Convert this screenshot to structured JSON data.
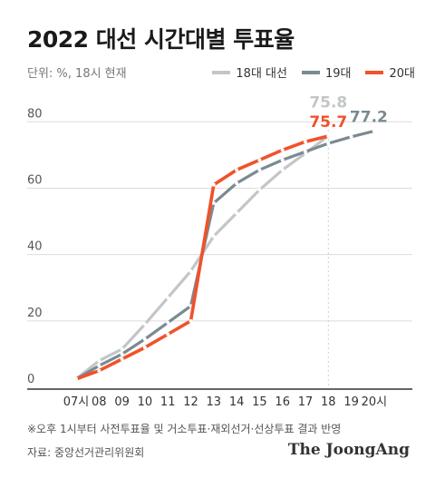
{
  "title": "2022 대선 시간대별 투표율",
  "unit_note": "단위: %, 18시 현재",
  "footnote": "※오후 1시부터 사전투표율 및 거소투표·재외선거·선상투표 결과 반영",
  "source": "자료: 중앙선거관리위원회",
  "brand": "The JoongAng",
  "colors": {
    "s18": "#c3c6c8",
    "s19": "#7a8a92",
    "s20": "#f0522a",
    "grid": "#dcdcdc",
    "axis": "#333333"
  },
  "chart_data": {
    "type": "line",
    "title": "2022 대선 시간대별 투표율",
    "xlabel": "",
    "ylabel": "",
    "ylim": [
      0,
      85
    ],
    "y_ticks": [
      0,
      20,
      40,
      60,
      80
    ],
    "x_ticks": [
      "07시",
      "08",
      "09",
      "10",
      "11",
      "12",
      "13",
      "14",
      "15",
      "16",
      "17",
      "18",
      "19",
      "20시"
    ],
    "grid": "horizontal",
    "legend": "top-right",
    "series": [
      {
        "name": "18대 대선",
        "color": "#c3c6c8",
        "x": [
          "07시",
          "08",
          "09",
          "10",
          "11",
          "12",
          "13",
          "14",
          "15",
          "16",
          "17",
          "18"
        ],
        "values": [
          2.5,
          8,
          11.5,
          19,
          27,
          35,
          45.5,
          52.5,
          59.5,
          65.5,
          70.5,
          75.8
        ],
        "end_label": "75.8"
      },
      {
        "name": "19대",
        "color": "#7a8a92",
        "x": [
          "07시",
          "08",
          "09",
          "10",
          "11",
          "12",
          "13",
          "14",
          "15",
          "16",
          "17",
          "18",
          "19",
          "20시"
        ],
        "values": [
          2.5,
          6.5,
          10,
          14.5,
          19.5,
          24.5,
          55.5,
          61.5,
          65.5,
          68.5,
          71,
          73.5,
          75.5,
          77.2
        ],
        "end_label": "77.2"
      },
      {
        "name": "20대",
        "color": "#f0522a",
        "x": [
          "07시",
          "08",
          "09",
          "10",
          "11",
          "12",
          "13",
          "14",
          "15",
          "16",
          "17",
          "18"
        ],
        "values": [
          2.5,
          5,
          8.5,
          12,
          16,
          20,
          61,
          65.5,
          68.5,
          71.5,
          74,
          75.7
        ],
        "end_label": "75.7"
      }
    ]
  }
}
